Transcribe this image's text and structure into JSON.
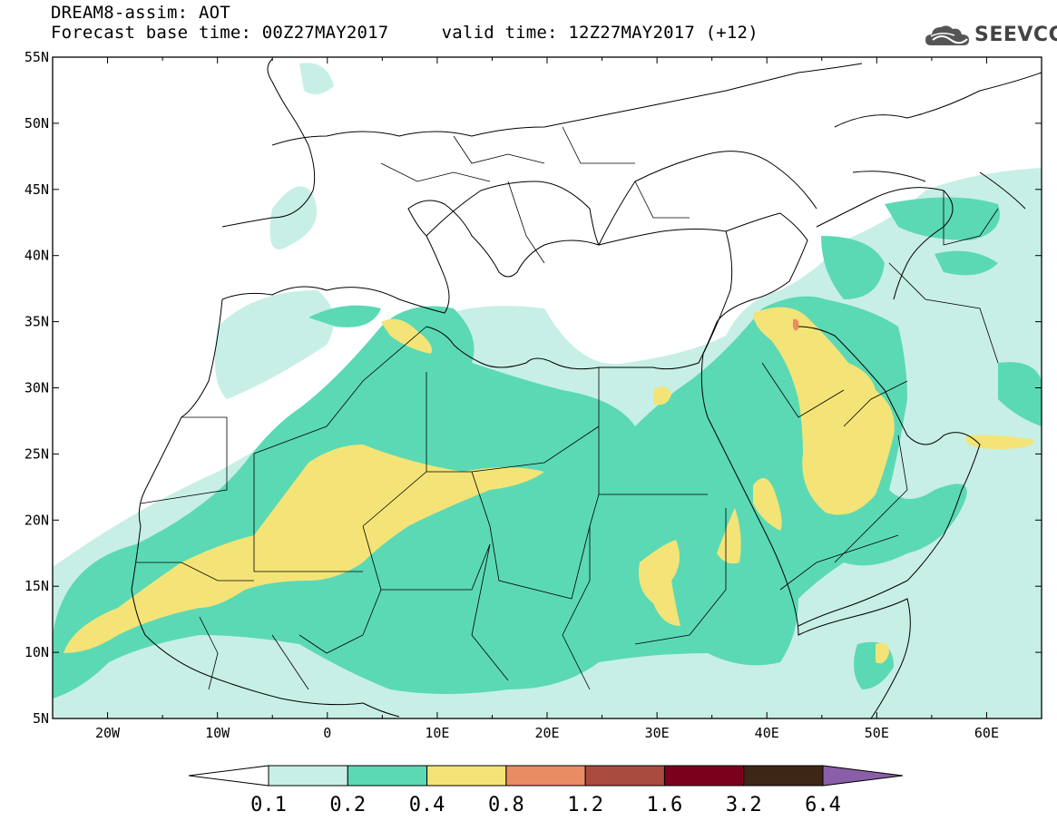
{
  "header": {
    "line1": "DREAM8-assim: AOT",
    "base_time_label": "Forecast base time:",
    "base_time": "00Z27MAY2017",
    "valid_time_label": "valid time:",
    "valid_time": "12Z27MAY2017",
    "lead": "(+12)"
  },
  "logo": {
    "text": "SEEVCCC",
    "icon": "cloud-logo-icon",
    "color": "#555555"
  },
  "map": {
    "lon_range": [
      -25,
      65
    ],
    "lat_range": [
      5,
      55
    ],
    "lat_labels": [
      "55N",
      "50N",
      "45N",
      "40N",
      "35N",
      "30N",
      "25N",
      "20N",
      "15N",
      "10N",
      "5N"
    ],
    "lon_labels": [
      "20W",
      "10W",
      "0",
      "10E",
      "20E",
      "30E",
      "40E",
      "50E",
      "60E"
    ]
  },
  "colorbar": {
    "labels": [
      "0.1",
      "0.2",
      "0.4",
      "0.8",
      "1.2",
      "1.6",
      "3.2",
      "6.4"
    ],
    "colors": [
      "#ffffff",
      "#c7efe6",
      "#5bd9b4",
      "#f4e477",
      "#e98c63",
      "#a94b3e",
      "#7b001c",
      "#3e2617",
      "#8b5fa8"
    ]
  }
}
